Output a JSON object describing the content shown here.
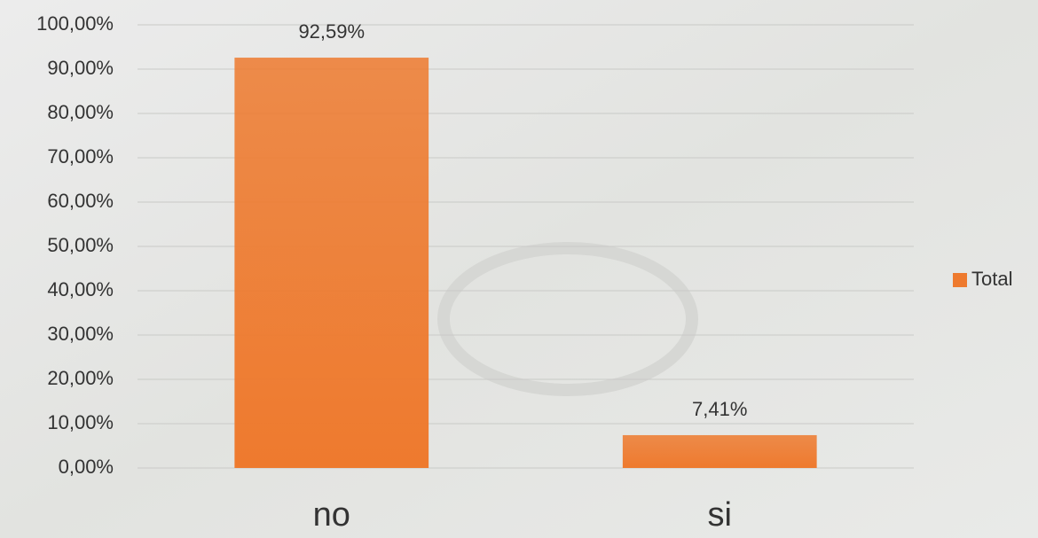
{
  "chart_data": {
    "type": "bar",
    "categories": [
      "no",
      "si"
    ],
    "series": [
      {
        "name": "Total",
        "color": "#ee7a2e",
        "values": [
          92.59,
          7.41
        ],
        "value_labels": [
          "92,59%",
          "7,41%"
        ]
      }
    ],
    "ylim": [
      0,
      100
    ],
    "yticks": [
      {
        "value": 0,
        "label": "0,00%"
      },
      {
        "value": 10,
        "label": "10,00%"
      },
      {
        "value": 20,
        "label": "20,00%"
      },
      {
        "value": 30,
        "label": "30,00%"
      },
      {
        "value": 40,
        "label": "40,00%"
      },
      {
        "value": 50,
        "label": "50,00%"
      },
      {
        "value": 60,
        "label": "60,00%"
      },
      {
        "value": 70,
        "label": "70,00%"
      },
      {
        "value": 80,
        "label": "80,00%"
      },
      {
        "value": 90,
        "label": "90,00%"
      },
      {
        "value": 100,
        "label": "100,00%"
      }
    ],
    "grid": true,
    "legend": "right"
  }
}
